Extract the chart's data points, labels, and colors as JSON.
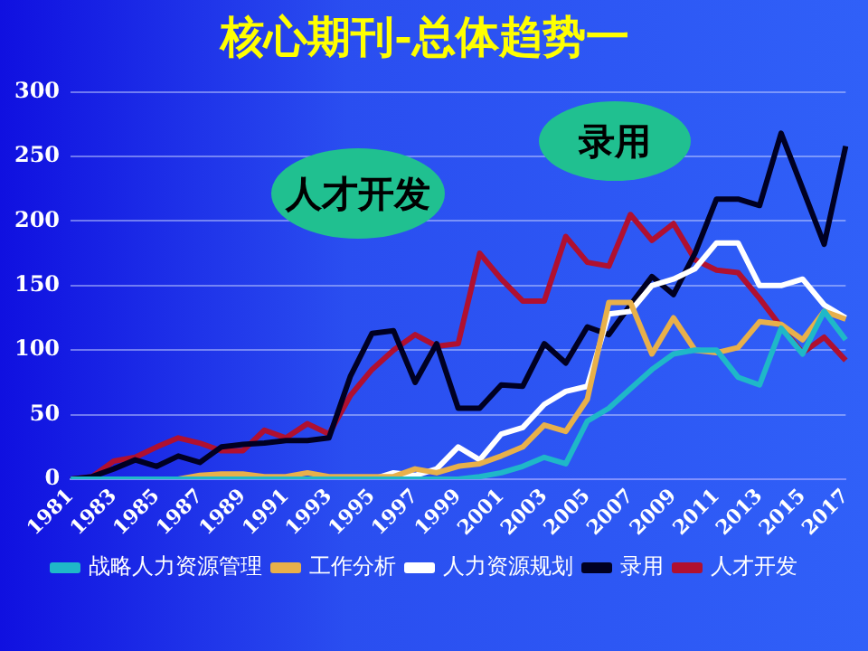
{
  "chart_data": {
    "type": "line",
    "title": "核心期刊-总体趋势一",
    "categories": [
      "1981",
      null,
      "1983",
      null,
      "1985",
      null,
      "1987",
      null,
      "1989",
      null,
      "1991",
      null,
      "1993",
      null,
      "1995",
      null,
      "1997",
      null,
      "1999",
      null,
      "2001",
      null,
      "2003",
      null,
      "2005",
      null,
      "2007",
      null,
      "2009",
      null,
      "2011",
      null,
      "2013",
      null,
      "2015",
      null,
      "2017"
    ],
    "series": [
      {
        "name": "战略人力资源管理",
        "color": "#1fb8c8",
        "values": [
          0,
          0,
          0,
          0,
          0,
          0,
          0,
          0,
          0,
          0,
          0,
          0,
          0,
          0,
          0,
          0,
          0,
          0,
          0,
          2,
          5,
          10,
          17,
          12,
          45,
          55,
          70,
          85,
          97,
          100,
          100,
          79,
          73,
          117,
          97,
          130,
          108
        ]
      },
      {
        "name": "工作分析",
        "color": "#e8b04a",
        "values": [
          null,
          null,
          null,
          null,
          0,
          0,
          3,
          4,
          4,
          2,
          2,
          5,
          2,
          2,
          2,
          2,
          8,
          5,
          10,
          12,
          18,
          25,
          42,
          37,
          62,
          137,
          137,
          97,
          125,
          100,
          98,
          102,
          122,
          120,
          108,
          130,
          124
        ]
      },
      {
        "name": "人力资源规划",
        "color": "#ffffff",
        "values": [
          null,
          null,
          null,
          null,
          null,
          null,
          null,
          null,
          null,
          null,
          null,
          null,
          null,
          0,
          0,
          5,
          3,
          8,
          25,
          15,
          35,
          40,
          58,
          68,
          72,
          128,
          130,
          150,
          155,
          163,
          183,
          183,
          150,
          150,
          155,
          135,
          125
        ]
      },
      {
        "name": "录用",
        "color": "#000022",
        "values": [
          0,
          2,
          8,
          15,
          10,
          18,
          13,
          25,
          27,
          28,
          30,
          30,
          32,
          80,
          113,
          115,
          75,
          105,
          55,
          55,
          73,
          72,
          105,
          90,
          118,
          112,
          135,
          157,
          143,
          175,
          217,
          217,
          212,
          268,
          225,
          182,
          258
        ]
      },
      {
        "name": "人才开发",
        "color": "#b01030",
        "values": [
          0,
          2,
          14,
          17,
          25,
          32,
          28,
          22,
          22,
          38,
          32,
          43,
          35,
          65,
          85,
          100,
          112,
          103,
          105,
          175,
          155,
          138,
          138,
          188,
          168,
          165,
          205,
          185,
          198,
          170,
          162,
          160,
          140,
          118,
          98,
          110,
          92
        ]
      }
    ],
    "ylim": [
      0,
      300
    ],
    "yticks": [
      0,
      50,
      100,
      150,
      200,
      250,
      300
    ],
    "grid": "y",
    "legend": "bottom",
    "marker": "none",
    "line_style": "solid",
    "annotations": [
      "人才开发",
      "录用"
    ]
  }
}
